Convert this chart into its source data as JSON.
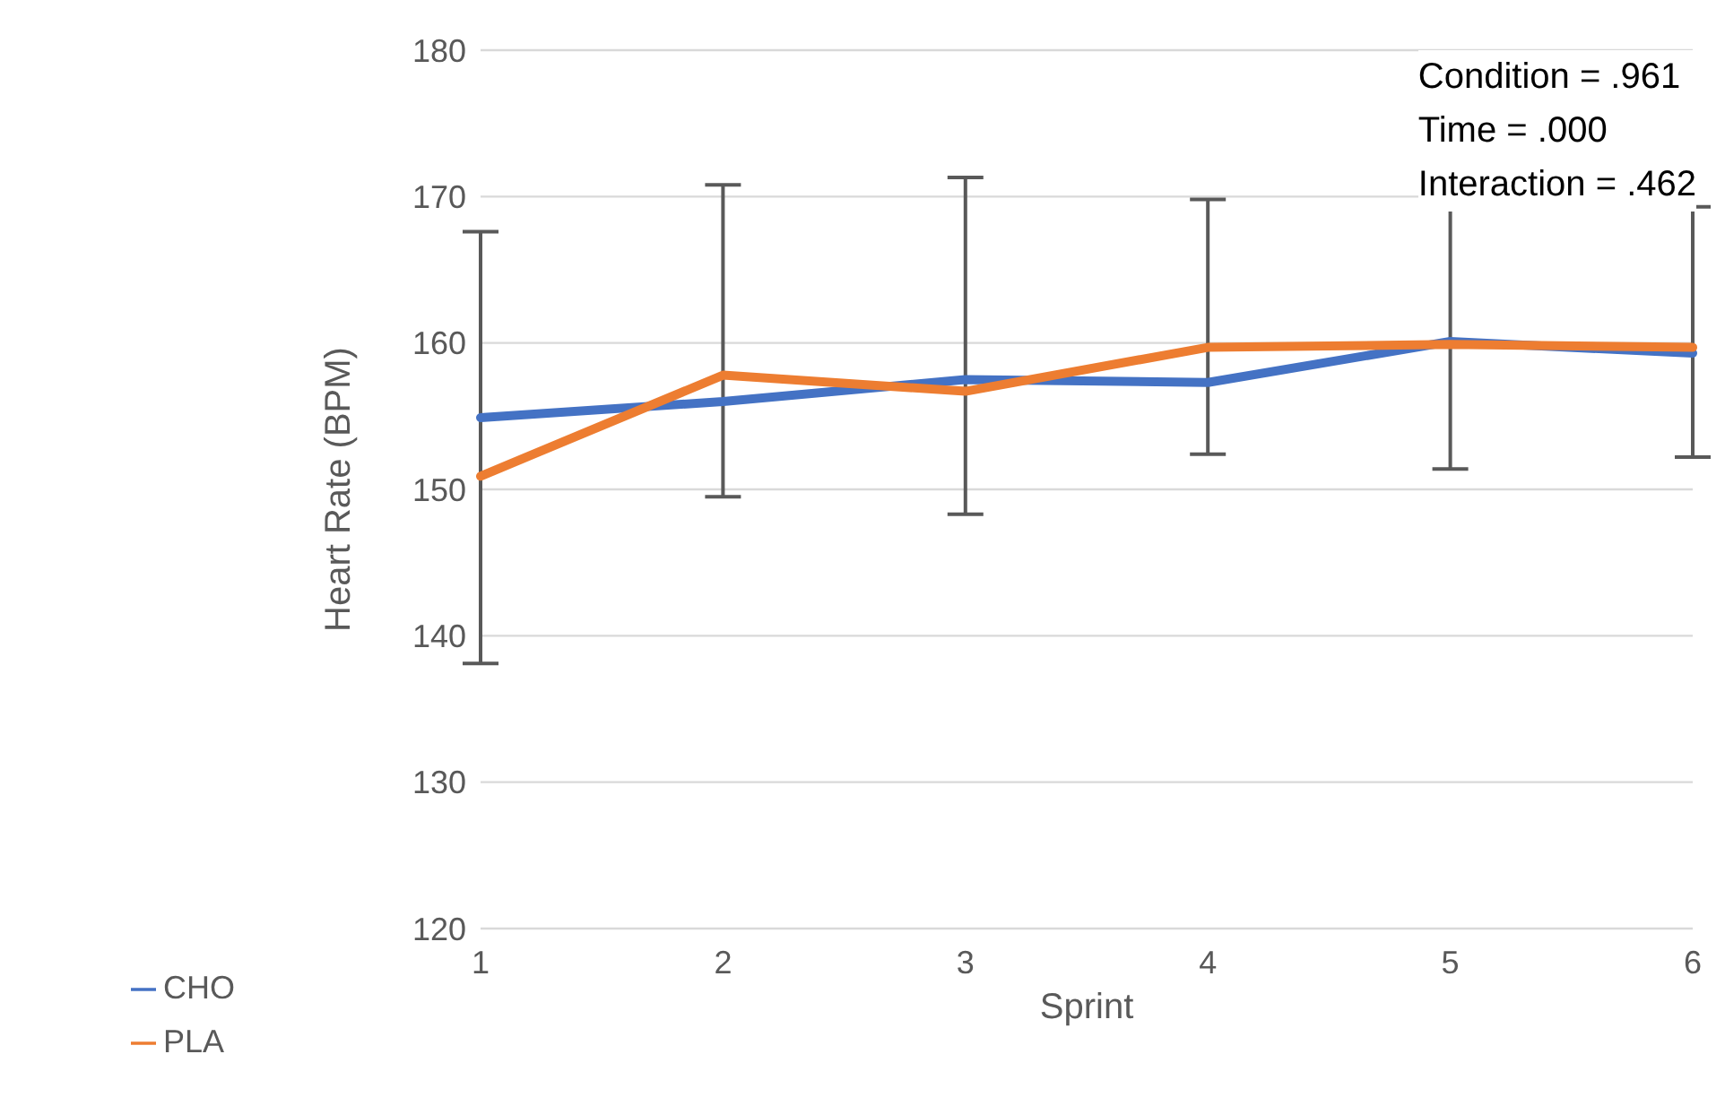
{
  "chart_data": {
    "type": "line",
    "xlabel": "Sprint",
    "ylabel": "Heart Rate (BPM)",
    "categories": [
      "1",
      "2",
      "3",
      "4",
      "5",
      "6"
    ],
    "series": [
      {
        "name": "CHO",
        "color": "#4472c4",
        "values": [
          154.9,
          156.0,
          157.5,
          157.3,
          160.1,
          159.3
        ],
        "errors": [
          [
            138.1,
            167.6
          ],
          [
            149.5,
            170.8
          ],
          [
            148.3,
            171.3
          ],
          [
            152.4,
            169.8
          ],
          [
            151.4,
            170.9
          ],
          [
            152.2,
            169.3
          ]
        ]
      },
      {
        "name": "PLA",
        "color": "#ed7d31",
        "values": [
          150.9,
          157.8,
          156.7,
          159.7,
          159.9,
          159.7
        ]
      }
    ],
    "ylim": [
      120,
      180
    ],
    "yticks": [
      120,
      130,
      140,
      150,
      160,
      170,
      180
    ],
    "grid": "y",
    "legend": "bottom left",
    "annotations": [
      "Condition = .961",
      "Time = .000",
      "Interaction = .462"
    ]
  }
}
